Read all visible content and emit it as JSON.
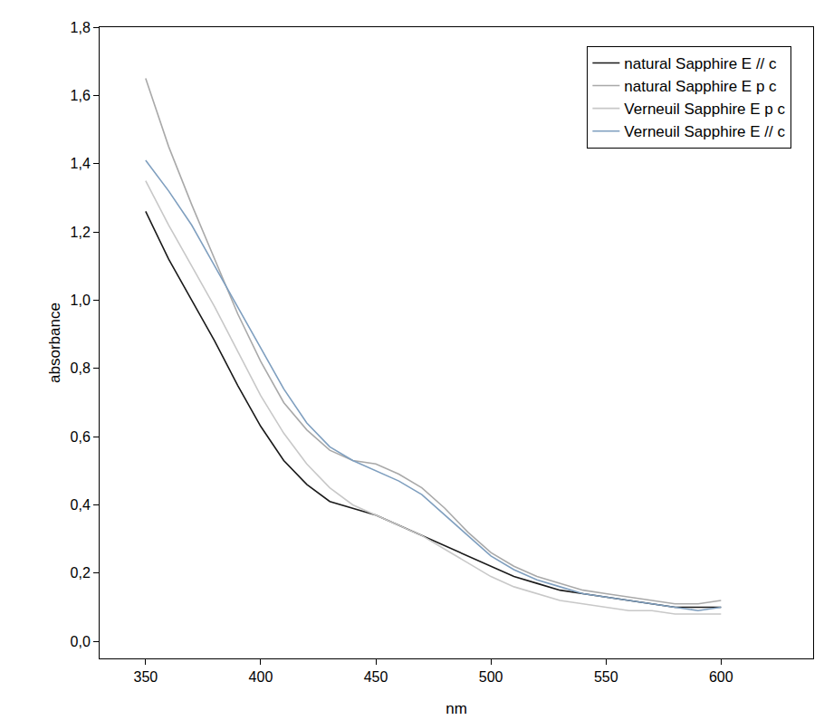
{
  "chart_data": {
    "type": "line",
    "x_label": "nm",
    "y_label": "absorbance",
    "x": [
      350,
      360,
      370,
      380,
      390,
      400,
      410,
      420,
      430,
      440,
      450,
      460,
      470,
      480,
      490,
      500,
      510,
      520,
      530,
      540,
      550,
      560,
      570,
      580,
      590,
      600
    ],
    "series": [
      {
        "name": "natural Sapphire E // c",
        "color": "#1a1a1a",
        "values": [
          1.26,
          1.12,
          1.0,
          0.88,
          0.75,
          0.63,
          0.53,
          0.46,
          0.41,
          0.39,
          0.37,
          0.34,
          0.31,
          0.28,
          0.25,
          0.22,
          0.19,
          0.17,
          0.15,
          0.14,
          0.13,
          0.12,
          0.11,
          0.1,
          0.1,
          0.1
        ]
      },
      {
        "name": "natural Sapphire E p c",
        "color": "#a9a9a9",
        "values": [
          1.65,
          1.45,
          1.28,
          1.12,
          0.96,
          0.82,
          0.7,
          0.62,
          0.56,
          0.53,
          0.52,
          0.49,
          0.45,
          0.39,
          0.32,
          0.26,
          0.22,
          0.19,
          0.17,
          0.15,
          0.14,
          0.13,
          0.12,
          0.11,
          0.11,
          0.12
        ]
      },
      {
        "name": "Verneuil Sapphire E p c",
        "color": "#c8c8c8",
        "values": [
          1.35,
          1.22,
          1.1,
          0.98,
          0.85,
          0.72,
          0.61,
          0.52,
          0.45,
          0.4,
          0.37,
          0.34,
          0.31,
          0.27,
          0.23,
          0.19,
          0.16,
          0.14,
          0.12,
          0.11,
          0.1,
          0.09,
          0.09,
          0.08,
          0.08,
          0.08
        ]
      },
      {
        "name": "Verneuil Sapphire E // c",
        "color": "#7f9fbf",
        "values": [
          1.41,
          1.32,
          1.22,
          1.1,
          0.98,
          0.86,
          0.74,
          0.64,
          0.57,
          0.53,
          0.5,
          0.47,
          0.43,
          0.37,
          0.31,
          0.25,
          0.21,
          0.18,
          0.16,
          0.14,
          0.13,
          0.12,
          0.11,
          0.1,
          0.09,
          0.1
        ]
      }
    ],
    "xlim": [
      330,
      640
    ],
    "xticks": [
      350,
      400,
      450,
      500,
      550,
      600
    ],
    "ylim": [
      -0.05,
      1.8
    ],
    "yticks": [
      {
        "value": 0,
        "label": "0,0"
      },
      {
        "value": 0.2,
        "label": "0,2"
      },
      {
        "value": 0.4,
        "label": "0,4"
      },
      {
        "value": 0.6,
        "label": "0,6"
      },
      {
        "value": 0.8,
        "label": "0,8"
      },
      {
        "value": 1.0,
        "label": "1,0"
      },
      {
        "value": 1.2,
        "label": "1,2"
      },
      {
        "value": 1.4,
        "label": "1,4"
      },
      {
        "value": 1.6,
        "label": "1,6"
      },
      {
        "value": 1.8,
        "label": "1,8"
      }
    ],
    "grid": false,
    "legend": "upper right"
  }
}
